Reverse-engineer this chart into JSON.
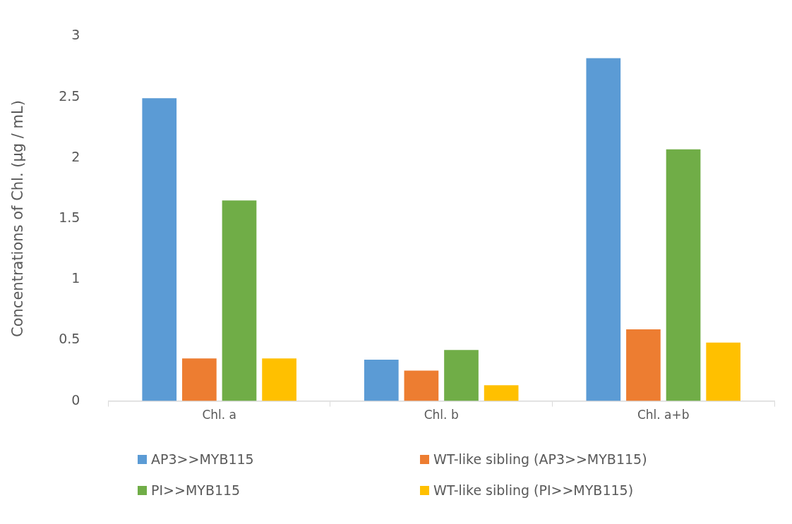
{
  "chart_data": {
    "type": "bar",
    "ylabel": "Concentrations of Chl. (µg / mL)",
    "categories": [
      "Chl. a",
      "Chl. b",
      "Chl. a+b"
    ],
    "series": [
      {
        "name": "AP3>>MYB115",
        "color": "#5b9bd5",
        "values": [
          2.49,
          0.34,
          2.82
        ]
      },
      {
        "name": "WT-like sibling (AP3>>MYB115)",
        "color": "#ed7d31",
        "values": [
          0.35,
          0.25,
          0.59
        ]
      },
      {
        "name": "PI>>MYB115",
        "color": "#70ad47",
        "values": [
          1.65,
          0.42,
          2.07
        ]
      },
      {
        "name": "WT-like sibling (PI>>MYB115)",
        "color": "#ffc000",
        "values": [
          0.35,
          0.13,
          0.48
        ]
      }
    ],
    "ylim": [
      0,
      3
    ],
    "yticks": [
      0,
      0.5,
      1,
      1.5,
      2,
      2.5,
      3
    ],
    "grid": false,
    "legend": "bottom"
  }
}
